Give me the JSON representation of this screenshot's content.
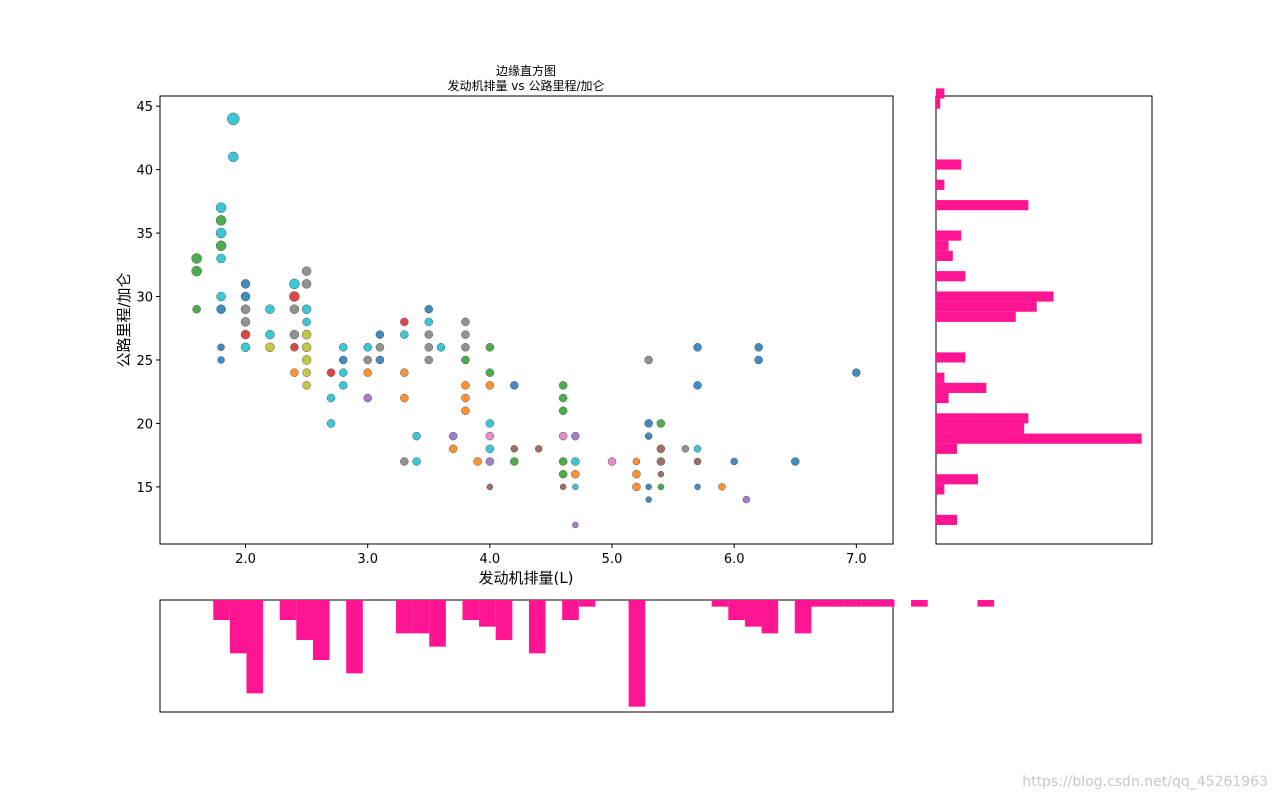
{
  "chart_data": {
    "type": "scatter",
    "title_line1": "边缘直方图",
    "title_line2": "发动机排量 vs 公路里程/加仑",
    "xlabel": "发动机排量(L)",
    "ylabel": "公路里程/加仑",
    "xlim": [
      1.3,
      7.3
    ],
    "ylim": [
      10.5,
      45.8
    ],
    "xticks": [
      "2.0",
      "3.0",
      "4.0",
      "5.0",
      "6.0",
      "7.0"
    ],
    "yticks": [
      "15",
      "20",
      "25",
      "30",
      "35",
      "40",
      "45"
    ],
    "grid": false,
    "hist_color": "#ff1493",
    "points": [
      {
        "x": 1.6,
        "y": 33,
        "c": "#2ca02c",
        "s": 10
      },
      {
        "x": 1.6,
        "y": 32,
        "c": "#2ca02c",
        "s": 10
      },
      {
        "x": 1.6,
        "y": 29,
        "c": "#2ca02c",
        "s": 8
      },
      {
        "x": 1.8,
        "y": 37,
        "c": "#17becf",
        "s": 10
      },
      {
        "x": 1.8,
        "y": 36,
        "c": "#2ca02c",
        "s": 10
      },
      {
        "x": 1.8,
        "y": 35,
        "c": "#17becf",
        "s": 10
      },
      {
        "x": 1.8,
        "y": 34,
        "c": "#2ca02c",
        "s": 10
      },
      {
        "x": 1.8,
        "y": 33,
        "c": "#17becf",
        "s": 9
      },
      {
        "x": 1.8,
        "y": 30,
        "c": "#17becf",
        "s": 9
      },
      {
        "x": 1.8,
        "y": 29,
        "c": "#1f77b4",
        "s": 9
      },
      {
        "x": 1.8,
        "y": 26,
        "c": "#1f77b4",
        "s": 7
      },
      {
        "x": 1.8,
        "y": 25,
        "c": "#1f77b4",
        "s": 7
      },
      {
        "x": 1.9,
        "y": 44,
        "c": "#17becf",
        "s": 12
      },
      {
        "x": 1.9,
        "y": 41,
        "c": "#17becf",
        "s": 10
      },
      {
        "x": 2.0,
        "y": 31,
        "c": "#1f77b4",
        "s": 9
      },
      {
        "x": 2.0,
        "y": 30,
        "c": "#1f77b4",
        "s": 9
      },
      {
        "x": 2.0,
        "y": 29,
        "c": "#7f7f7f",
        "s": 9
      },
      {
        "x": 2.0,
        "y": 28,
        "c": "#7f7f7f",
        "s": 9
      },
      {
        "x": 2.0,
        "y": 27,
        "c": "#d62728",
        "s": 9
      },
      {
        "x": 2.0,
        "y": 26,
        "c": "#17becf",
        "s": 9
      },
      {
        "x": 2.2,
        "y": 29,
        "c": "#17becf",
        "s": 9
      },
      {
        "x": 2.2,
        "y": 27,
        "c": "#17becf",
        "s": 9
      },
      {
        "x": 2.2,
        "y": 26,
        "c": "#bcbd22",
        "s": 9
      },
      {
        "x": 2.4,
        "y": 31,
        "c": "#17becf",
        "s": 10
      },
      {
        "x": 2.4,
        "y": 30,
        "c": "#d62728",
        "s": 10
      },
      {
        "x": 2.4,
        "y": 29,
        "c": "#7f7f7f",
        "s": 9
      },
      {
        "x": 2.4,
        "y": 27,
        "c": "#7f7f7f",
        "s": 9
      },
      {
        "x": 2.4,
        "y": 26,
        "c": "#d62728",
        "s": 8
      },
      {
        "x": 2.4,
        "y": 24,
        "c": "#ff7f0e",
        "s": 8
      },
      {
        "x": 2.5,
        "y": 32,
        "c": "#7f7f7f",
        "s": 9
      },
      {
        "x": 2.5,
        "y": 31,
        "c": "#7f7f7f",
        "s": 9
      },
      {
        "x": 2.5,
        "y": 29,
        "c": "#17becf",
        "s": 9
      },
      {
        "x": 2.5,
        "y": 28,
        "c": "#17becf",
        "s": 8
      },
      {
        "x": 2.5,
        "y": 27,
        "c": "#bcbd22",
        "s": 9
      },
      {
        "x": 2.5,
        "y": 26,
        "c": "#bcbd22",
        "s": 9
      },
      {
        "x": 2.5,
        "y": 25,
        "c": "#bcbd22",
        "s": 9
      },
      {
        "x": 2.5,
        "y": 24,
        "c": "#bcbd22",
        "s": 8
      },
      {
        "x": 2.5,
        "y": 23,
        "c": "#bcbd22",
        "s": 8
      },
      {
        "x": 2.7,
        "y": 24,
        "c": "#d62728",
        "s": 8
      },
      {
        "x": 2.7,
        "y": 22,
        "c": "#17becf",
        "s": 8
      },
      {
        "x": 2.7,
        "y": 20,
        "c": "#17becf",
        "s": 8
      },
      {
        "x": 2.8,
        "y": 26,
        "c": "#17becf",
        "s": 8
      },
      {
        "x": 2.8,
        "y": 25,
        "c": "#1f77b4",
        "s": 8
      },
      {
        "x": 2.8,
        "y": 24,
        "c": "#17becf",
        "s": 8
      },
      {
        "x": 2.8,
        "y": 23,
        "c": "#17becf",
        "s": 8
      },
      {
        "x": 3.0,
        "y": 26,
        "c": "#17becf",
        "s": 8
      },
      {
        "x": 3.0,
        "y": 25,
        "c": "#7f7f7f",
        "s": 8
      },
      {
        "x": 3.0,
        "y": 24,
        "c": "#ff7f0e",
        "s": 8
      },
      {
        "x": 3.0,
        "y": 22,
        "c": "#9467bd",
        "s": 8
      },
      {
        "x": 3.1,
        "y": 27,
        "c": "#1f77b4",
        "s": 8
      },
      {
        "x": 3.1,
        "y": 26,
        "c": "#7f7f7f",
        "s": 8
      },
      {
        "x": 3.1,
        "y": 25,
        "c": "#1f77b4",
        "s": 8
      },
      {
        "x": 3.3,
        "y": 28,
        "c": "#d62728",
        "s": 8
      },
      {
        "x": 3.3,
        "y": 27,
        "c": "#17becf",
        "s": 8
      },
      {
        "x": 3.3,
        "y": 24,
        "c": "#ff7f0e",
        "s": 8
      },
      {
        "x": 3.3,
        "y": 22,
        "c": "#ff7f0e",
        "s": 8
      },
      {
        "x": 3.3,
        "y": 17,
        "c": "#7f7f7f",
        "s": 8
      },
      {
        "x": 3.4,
        "y": 19,
        "c": "#17becf",
        "s": 8
      },
      {
        "x": 3.4,
        "y": 17,
        "c": "#17becf",
        "s": 8
      },
      {
        "x": 3.5,
        "y": 29,
        "c": "#1f77b4",
        "s": 8
      },
      {
        "x": 3.5,
        "y": 28,
        "c": "#17becf",
        "s": 8
      },
      {
        "x": 3.5,
        "y": 27,
        "c": "#7f7f7f",
        "s": 8
      },
      {
        "x": 3.5,
        "y": 26,
        "c": "#7f7f7f",
        "s": 8
      },
      {
        "x": 3.5,
        "y": 25,
        "c": "#7f7f7f",
        "s": 8
      },
      {
        "x": 3.6,
        "y": 26,
        "c": "#17becf",
        "s": 8
      },
      {
        "x": 3.7,
        "y": 19,
        "c": "#9467bd",
        "s": 8
      },
      {
        "x": 3.7,
        "y": 18,
        "c": "#ff7f0e",
        "s": 8
      },
      {
        "x": 3.8,
        "y": 28,
        "c": "#7f7f7f",
        "s": 8
      },
      {
        "x": 3.8,
        "y": 27,
        "c": "#7f7f7f",
        "s": 8
      },
      {
        "x": 3.8,
        "y": 26,
        "c": "#7f7f7f",
        "s": 8
      },
      {
        "x": 3.8,
        "y": 25,
        "c": "#2ca02c",
        "s": 8
      },
      {
        "x": 3.8,
        "y": 23,
        "c": "#ff7f0e",
        "s": 8
      },
      {
        "x": 3.8,
        "y": 22,
        "c": "#ff7f0e",
        "s": 8
      },
      {
        "x": 3.8,
        "y": 21,
        "c": "#ff7f0e",
        "s": 8
      },
      {
        "x": 3.9,
        "y": 17,
        "c": "#ff7f0e",
        "s": 8
      },
      {
        "x": 4.0,
        "y": 26,
        "c": "#2ca02c",
        "s": 8
      },
      {
        "x": 4.0,
        "y": 24,
        "c": "#2ca02c",
        "s": 8
      },
      {
        "x": 4.0,
        "y": 23,
        "c": "#ff7f0e",
        "s": 8
      },
      {
        "x": 4.0,
        "y": 20,
        "c": "#17becf",
        "s": 8
      },
      {
        "x": 4.0,
        "y": 19,
        "c": "#e377c2",
        "s": 8
      },
      {
        "x": 4.0,
        "y": 18,
        "c": "#17becf",
        "s": 8
      },
      {
        "x": 4.0,
        "y": 17,
        "c": "#9467bd",
        "s": 8
      },
      {
        "x": 4.0,
        "y": 15,
        "c": "#8c564b",
        "s": 6
      },
      {
        "x": 4.2,
        "y": 23,
        "c": "#1f77b4",
        "s": 8
      },
      {
        "x": 4.2,
        "y": 18,
        "c": "#8c564b",
        "s": 7
      },
      {
        "x": 4.2,
        "y": 17,
        "c": "#2ca02c",
        "s": 8
      },
      {
        "x": 4.4,
        "y": 18,
        "c": "#8c564b",
        "s": 7
      },
      {
        "x": 4.6,
        "y": 23,
        "c": "#2ca02c",
        "s": 8
      },
      {
        "x": 4.6,
        "y": 22,
        "c": "#2ca02c",
        "s": 8
      },
      {
        "x": 4.6,
        "y": 21,
        "c": "#2ca02c",
        "s": 8
      },
      {
        "x": 4.6,
        "y": 19,
        "c": "#e377c2",
        "s": 8
      },
      {
        "x": 4.6,
        "y": 17,
        "c": "#2ca02c",
        "s": 8
      },
      {
        "x": 4.6,
        "y": 16,
        "c": "#2ca02c",
        "s": 8
      },
      {
        "x": 4.6,
        "y": 15,
        "c": "#8c564b",
        "s": 6
      },
      {
        "x": 4.7,
        "y": 19,
        "c": "#9467bd",
        "s": 8
      },
      {
        "x": 4.7,
        "y": 17,
        "c": "#17becf",
        "s": 8
      },
      {
        "x": 4.7,
        "y": 16,
        "c": "#ff7f0e",
        "s": 8
      },
      {
        "x": 4.7,
        "y": 15,
        "c": "#17becf",
        "s": 6
      },
      {
        "x": 4.7,
        "y": 12,
        "c": "#9467bd",
        "s": 6
      },
      {
        "x": 5.0,
        "y": 17,
        "c": "#e377c2",
        "s": 8
      },
      {
        "x": 5.2,
        "y": 17,
        "c": "#ff7f0e",
        "s": 7
      },
      {
        "x": 5.2,
        "y": 16,
        "c": "#ff7f0e",
        "s": 8
      },
      {
        "x": 5.2,
        "y": 15,
        "c": "#ff7f0e",
        "s": 8
      },
      {
        "x": 5.3,
        "y": 25,
        "c": "#7f7f7f",
        "s": 8
      },
      {
        "x": 5.3,
        "y": 20,
        "c": "#1f77b4",
        "s": 8
      },
      {
        "x": 5.3,
        "y": 19,
        "c": "#1f77b4",
        "s": 7
      },
      {
        "x": 5.3,
        "y": 15,
        "c": "#1f77b4",
        "s": 6
      },
      {
        "x": 5.3,
        "y": 14,
        "c": "#1f77b4",
        "s": 6
      },
      {
        "x": 5.4,
        "y": 20,
        "c": "#2ca02c",
        "s": 8
      },
      {
        "x": 5.4,
        "y": 18,
        "c": "#8c564b",
        "s": 8
      },
      {
        "x": 5.4,
        "y": 17,
        "c": "#8c564b",
        "s": 8
      },
      {
        "x": 5.4,
        "y": 16,
        "c": "#8c564b",
        "s": 6
      },
      {
        "x": 5.4,
        "y": 15,
        "c": "#2ca02c",
        "s": 6
      },
      {
        "x": 5.6,
        "y": 18,
        "c": "#7f7f7f",
        "s": 7
      },
      {
        "x": 5.7,
        "y": 26,
        "c": "#1f77b4",
        "s": 8
      },
      {
        "x": 5.7,
        "y": 23,
        "c": "#1f77b4",
        "s": 8
      },
      {
        "x": 5.7,
        "y": 18,
        "c": "#17becf",
        "s": 7
      },
      {
        "x": 5.7,
        "y": 17,
        "c": "#8c564b",
        "s": 7
      },
      {
        "x": 5.7,
        "y": 15,
        "c": "#1f77b4",
        "s": 6
      },
      {
        "x": 5.9,
        "y": 15,
        "c": "#ff7f0e",
        "s": 7
      },
      {
        "x": 6.0,
        "y": 17,
        "c": "#1f77b4",
        "s": 7
      },
      {
        "x": 6.1,
        "y": 14,
        "c": "#9467bd",
        "s": 7
      },
      {
        "x": 6.2,
        "y": 26,
        "c": "#1f77b4",
        "s": 8
      },
      {
        "x": 6.2,
        "y": 25,
        "c": "#1f77b4",
        "s": 8
      },
      {
        "x": 6.5,
        "y": 17,
        "c": "#1f77b4",
        "s": 8
      },
      {
        "x": 7.0,
        "y": 24,
        "c": "#1f77b4",
        "s": 8
      }
    ],
    "x_hist": {
      "bin_start": 1.6,
      "bin_width": 0.136,
      "counts": [
        0,
        3,
        8,
        14,
        0,
        3,
        6,
        9,
        0,
        11,
        0,
        0,
        5,
        5,
        7,
        0,
        3,
        4,
        6,
        0,
        8,
        0,
        3,
        1,
        0,
        0,
        16,
        0,
        0,
        0,
        0,
        1,
        3,
        4,
        5,
        0,
        5,
        1,
        1,
        1,
        1,
        1,
        0,
        1,
        0,
        0,
        0,
        1
      ]
    },
    "y_hist": {
      "bin_start": 12,
      "bin_width": 0.8,
      "counts": [
        5,
        0,
        0,
        2,
        10,
        0,
        0,
        5,
        49,
        21,
        22,
        0,
        3,
        12,
        2,
        0,
        7,
        0,
        0,
        0,
        19,
        24,
        28,
        0,
        7,
        0,
        4,
        3,
        6,
        0,
        0,
        22,
        0,
        2,
        0,
        6,
        0,
        0,
        0,
        0,
        0,
        1,
        2,
        0,
        0,
        0,
        0,
        0,
        0,
        0,
        0,
        0
      ]
    }
  },
  "watermark": "https://blog.csdn.net/qq_45261963"
}
